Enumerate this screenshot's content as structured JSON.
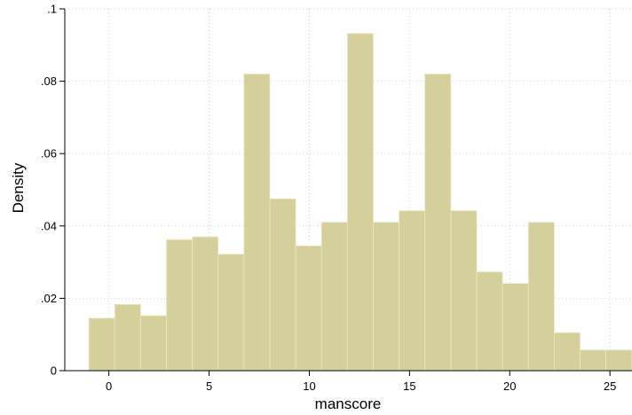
{
  "chart_data": {
    "type": "bar",
    "subtype": "histogram",
    "title": "",
    "xlabel": "manscore",
    "ylabel": "Density",
    "bin_width": 1.29,
    "bins": [
      {
        "start": -1.0,
        "end": 0.29,
        "density": 0.0145
      },
      {
        "start": 0.29,
        "end": 1.58,
        "density": 0.0183
      },
      {
        "start": 1.58,
        "end": 2.87,
        "density": 0.0152
      },
      {
        "start": 2.87,
        "end": 4.16,
        "density": 0.0362
      },
      {
        "start": 4.16,
        "end": 5.45,
        "density": 0.037
      },
      {
        "start": 5.45,
        "end": 6.74,
        "density": 0.0322
      },
      {
        "start": 6.74,
        "end": 8.03,
        "density": 0.082
      },
      {
        "start": 8.03,
        "end": 9.32,
        "density": 0.0475
      },
      {
        "start": 9.32,
        "end": 10.61,
        "density": 0.0345
      },
      {
        "start": 10.61,
        "end": 11.9,
        "density": 0.041
      },
      {
        "start": 11.9,
        "end": 13.19,
        "density": 0.0932
      },
      {
        "start": 13.19,
        "end": 14.48,
        "density": 0.041
      },
      {
        "start": 14.48,
        "end": 15.77,
        "density": 0.0442
      },
      {
        "start": 15.77,
        "end": 17.06,
        "density": 0.082
      },
      {
        "start": 17.06,
        "end": 18.35,
        "density": 0.0442
      },
      {
        "start": 18.35,
        "end": 19.64,
        "density": 0.0273
      },
      {
        "start": 19.64,
        "end": 20.93,
        "density": 0.0241
      },
      {
        "start": 20.93,
        "end": 22.22,
        "density": 0.041
      },
      {
        "start": 22.22,
        "end": 23.51,
        "density": 0.0105
      },
      {
        "start": 23.51,
        "end": 24.8,
        "density": 0.0057
      },
      {
        "start": 24.8,
        "end": 26.09,
        "density": 0.0057
      }
    ],
    "xlim": [
      -2.2,
      26.1
    ],
    "ylim": [
      0,
      0.1
    ],
    "x_ticks": [
      {
        "value": 0,
        "label": "0"
      },
      {
        "value": 5,
        "label": "5"
      },
      {
        "value": 10,
        "label": "10"
      },
      {
        "value": 15,
        "label": "15"
      },
      {
        "value": 20,
        "label": "20"
      },
      {
        "value": 25,
        "label": "25"
      }
    ],
    "y_ticks": [
      {
        "value": 0,
        "label": "0"
      },
      {
        "value": 0.02,
        "label": ".02"
      },
      {
        "value": 0.04,
        "label": ".04"
      },
      {
        "value": 0.06,
        "label": ".06"
      },
      {
        "value": 0.08,
        "label": ".08"
      },
      {
        "value": 0.1,
        "label": ".1"
      }
    ],
    "grid": true,
    "colors": {
      "bar_fill": "#d5cf9b",
      "bar_edge": "#ece8c8",
      "grid": "#cfcfcf",
      "axis": "#000000"
    }
  }
}
